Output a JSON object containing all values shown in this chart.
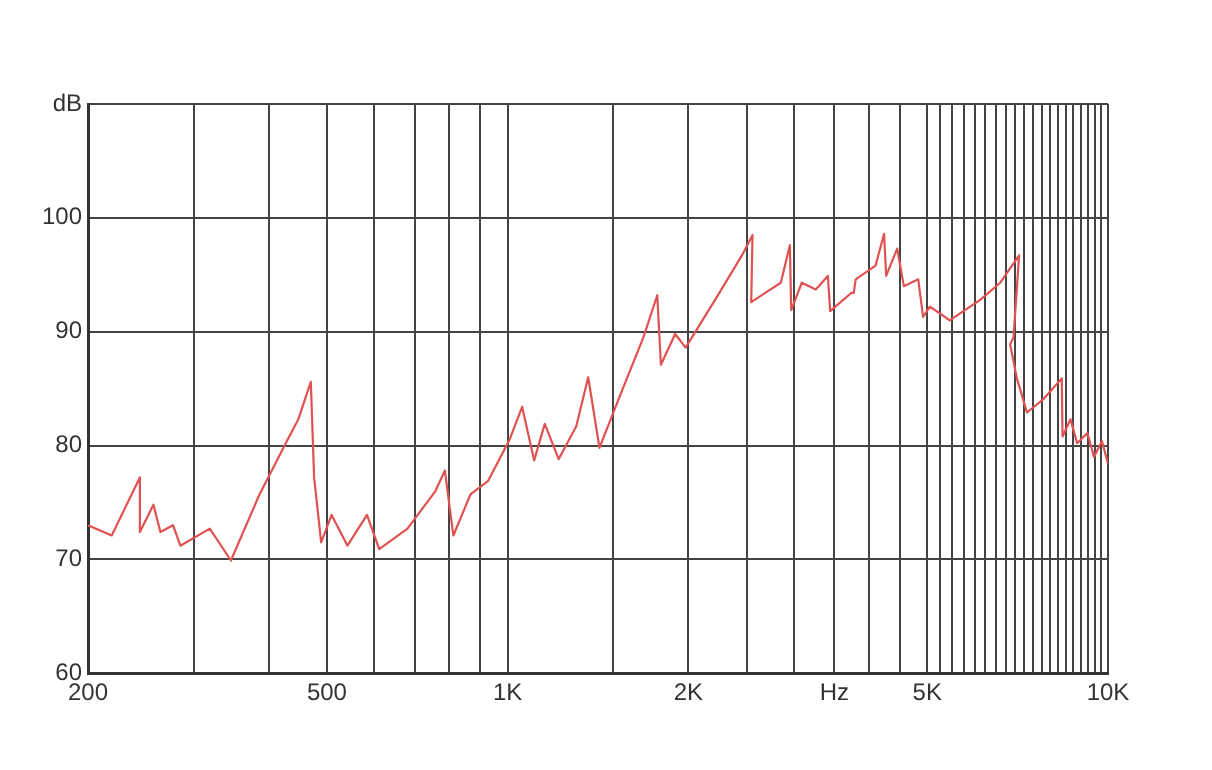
{
  "chart_data": {
    "type": "line",
    "log": "x",
    "grid": true,
    "legend": false,
    "marker": "none",
    "line_style": "solid",
    "xlim": [
      200,
      10000
    ],
    "ylim": [
      60,
      110
    ],
    "xticks": [
      200,
      {
        "value": 300,
        "label": null
      },
      {
        "value": 400,
        "label": null
      },
      500,
      {
        "value": 600,
        "label": null
      },
      {
        "value": 700,
        "label": null
      },
      {
        "value": 800,
        "label": null
      },
      {
        "value": 900,
        "label": null
      },
      {
        "value": 1000,
        "label": "1K"
      },
      {
        "value": 1500,
        "label": null
      },
      {
        "value": 2000,
        "label": "2K"
      },
      {
        "value": 2500,
        "label": null
      },
      {
        "value": 3000,
        "label": null
      },
      {
        "value": 3500,
        "label": "Hz"
      },
      {
        "value": 4000,
        "label": null
      },
      {
        "value": 4500,
        "label": null
      },
      {
        "value": 5000,
        "label": "5K"
      },
      {
        "value": 5250,
        "label": null
      },
      {
        "value": 5500,
        "label": null
      },
      {
        "value": 5750,
        "label": null
      },
      {
        "value": 6000,
        "label": null
      },
      {
        "value": 6250,
        "label": null
      },
      {
        "value": 6500,
        "label": null
      },
      {
        "value": 6750,
        "label": null
      },
      {
        "value": 7000,
        "label": null
      },
      {
        "value": 7250,
        "label": null
      },
      {
        "value": 7500,
        "label": null
      },
      {
        "value": 7750,
        "label": null
      },
      {
        "value": 8000,
        "label": null
      },
      {
        "value": 8250,
        "label": null
      },
      {
        "value": 8500,
        "label": null
      },
      {
        "value": 8750,
        "label": null
      },
      {
        "value": 9000,
        "label": null
      },
      {
        "value": 9250,
        "label": null
      },
      {
        "value": 9500,
        "label": null
      },
      {
        "value": 9750,
        "label": null
      },
      {
        "value": 10000,
        "label": "10K"
      }
    ],
    "yticks": [
      60,
      70,
      80,
      90,
      100,
      {
        "value": 110,
        "label": "dB"
      }
    ],
    "series": [
      {
        "color": "#e05252",
        "x": [
          200,
          219,
          244,
          244,
          257,
          264,
          277,
          285,
          319,
          346,
          386,
          424,
          448,
          470,
          476,
          489,
          509,
          541,
          583,
          611,
          681,
          758,
          786,
          812,
          867,
          928,
          1007,
          1057,
          1107,
          1153,
          1216,
          1301,
          1362,
          1422,
          1531,
          1683,
          1775,
          1800,
          1901,
          1979,
          2234,
          2456,
          2558,
          2545,
          2851,
          2952,
          2967,
          3090,
          3260,
          3415,
          3445,
          3735,
          3770,
          3800,
          4100,
          4237,
          4270,
          4455,
          4570,
          4830,
          4920,
          5050,
          5250,
          5450,
          6125,
          6615,
          7110,
          6960,
          6870,
          7050,
          7330,
          7815,
          8375,
          8400,
          8660,
          8885,
          9240,
          9475,
          9770,
          10000
        ],
        "values": [
          73,
          72.1,
          77.2,
          72.4,
          74.8,
          72.4,
          73,
          71.2,
          72.7,
          69.9,
          75.7,
          79.9,
          82.3,
          85.6,
          77.2,
          71.5,
          73.9,
          71.2,
          73.9,
          70.9,
          72.7,
          76,
          77.8,
          72.1,
          75.7,
          76.9,
          80.5,
          83.4,
          78.7,
          81.9,
          78.8,
          81.7,
          86,
          79.8,
          84.1,
          89.5,
          93.2,
          87.1,
          89.8,
          88.6,
          93.1,
          96.7,
          98.5,
          92.6,
          94.3,
          97.6,
          91.9,
          94.3,
          93.7,
          94.9,
          91.8,
          93.4,
          93.4,
          94.6,
          95.8,
          98.6,
          94.9,
          97.3,
          94,
          94.6,
          91.3,
          92.2,
          91.6,
          91,
          92.8,
          94.3,
          96.7,
          89.5,
          88.9,
          85.9,
          82.9,
          84.1,
          85.9,
          80.8,
          82.3,
          80.2,
          81.1,
          79,
          80.4,
          78.4
        ]
      }
    ]
  }
}
